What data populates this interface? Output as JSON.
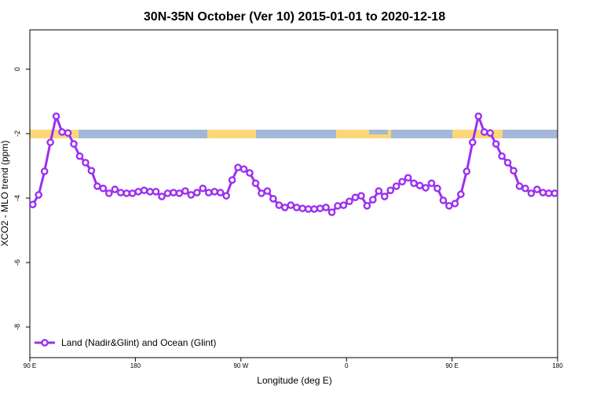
{
  "chart_data": {
    "type": "line",
    "title": "30N-35N October (Ver 10)   2015-01-01 to 2020-12-18",
    "x_label": "Longitude (deg E)",
    "y_label": "XCO2 - MLO trend (ppm)",
    "xlim": [
      90,
      540
    ],
    "ylim": [
      -8.95,
      1.22
    ],
    "xticks": [
      {
        "value": 90,
        "label": "90 E"
      },
      {
        "value": 180,
        "label": "180"
      },
      {
        "value": 270,
        "label": "90 W"
      },
      {
        "value": 360,
        "label": "0"
      },
      {
        "value": 450,
        "label": "90 E"
      },
      {
        "value": 540,
        "label": "180"
      }
    ],
    "yticks": [
      0,
      -2,
      -4,
      -6,
      -8
    ],
    "legend_position": "bottom-left",
    "x": [
      92.5,
      97.5,
      102.5,
      107.5,
      112.5,
      117.5,
      122.5,
      127.5,
      132.5,
      137.5,
      142.5,
      147.5,
      152.5,
      157.5,
      162.5,
      167.5,
      172.5,
      177.5,
      182.5,
      187.5,
      192.5,
      197.5,
      202.5,
      207.5,
      212.5,
      217.5,
      222.5,
      227.5,
      232.5,
      237.5,
      242.5,
      247.5,
      252.5,
      257.5,
      262.5,
      267.5,
      272.5,
      277.5,
      282.5,
      287.5,
      292.5,
      297.5,
      302.5,
      307.5,
      312.5,
      317.5,
      322.5,
      327.5,
      332.5,
      337.5,
      342.5,
      347.5,
      352.5,
      357.5,
      362.5,
      367.5,
      372.5,
      377.5,
      382.5,
      387.5,
      392.5,
      397.5,
      402.5,
      407.5,
      412.5,
      417.5,
      422.5,
      427.5,
      432.5,
      437.5,
      442.5,
      447.5,
      452.5,
      457.5,
      462.5,
      467.5,
      472.5,
      477.5,
      482.5,
      487.5,
      492.5,
      497.5,
      502.5,
      507.5,
      512.5,
      517.5,
      522.5,
      527.5,
      532.5,
      537.5
    ],
    "series": [
      {
        "name": "Land (Nadir&Glint) and Ocean (Glint)",
        "color": "#9b30f0",
        "values": [
          -4.2,
          -3.9,
          -3.17,
          -2.27,
          -1.46,
          -1.95,
          -1.98,
          -2.32,
          -2.7,
          -2.9,
          -3.15,
          -3.63,
          -3.7,
          -3.85,
          -3.73,
          -3.83,
          -3.85,
          -3.85,
          -3.8,
          -3.76,
          -3.8,
          -3.8,
          -3.95,
          -3.85,
          -3.83,
          -3.85,
          -3.78,
          -3.9,
          -3.83,
          -3.7,
          -3.83,
          -3.8,
          -3.83,
          -3.93,
          -3.44,
          -3.05,
          -3.1,
          -3.22,
          -3.54,
          -3.85,
          -3.78,
          -4.02,
          -4.22,
          -4.29,
          -4.22,
          -4.29,
          -4.32,
          -4.34,
          -4.34,
          -4.32,
          -4.29,
          -4.44,
          -4.24,
          -4.22,
          -4.1,
          -3.98,
          -3.93,
          -4.24,
          -4.05,
          -3.78,
          -3.95,
          -3.76,
          -3.63,
          -3.49,
          -3.37,
          -3.54,
          -3.61,
          -3.68,
          -3.54,
          -3.7,
          -4.07,
          -4.24,
          -4.17,
          -3.88,
          -3.17,
          -2.27,
          -1.46,
          -1.95,
          -1.98,
          -2.32,
          -2.7,
          -2.9,
          -3.15,
          -3.63,
          -3.7,
          -3.85,
          -3.73,
          -3.83,
          -3.85,
          -3.85
        ]
      }
    ]
  }
}
